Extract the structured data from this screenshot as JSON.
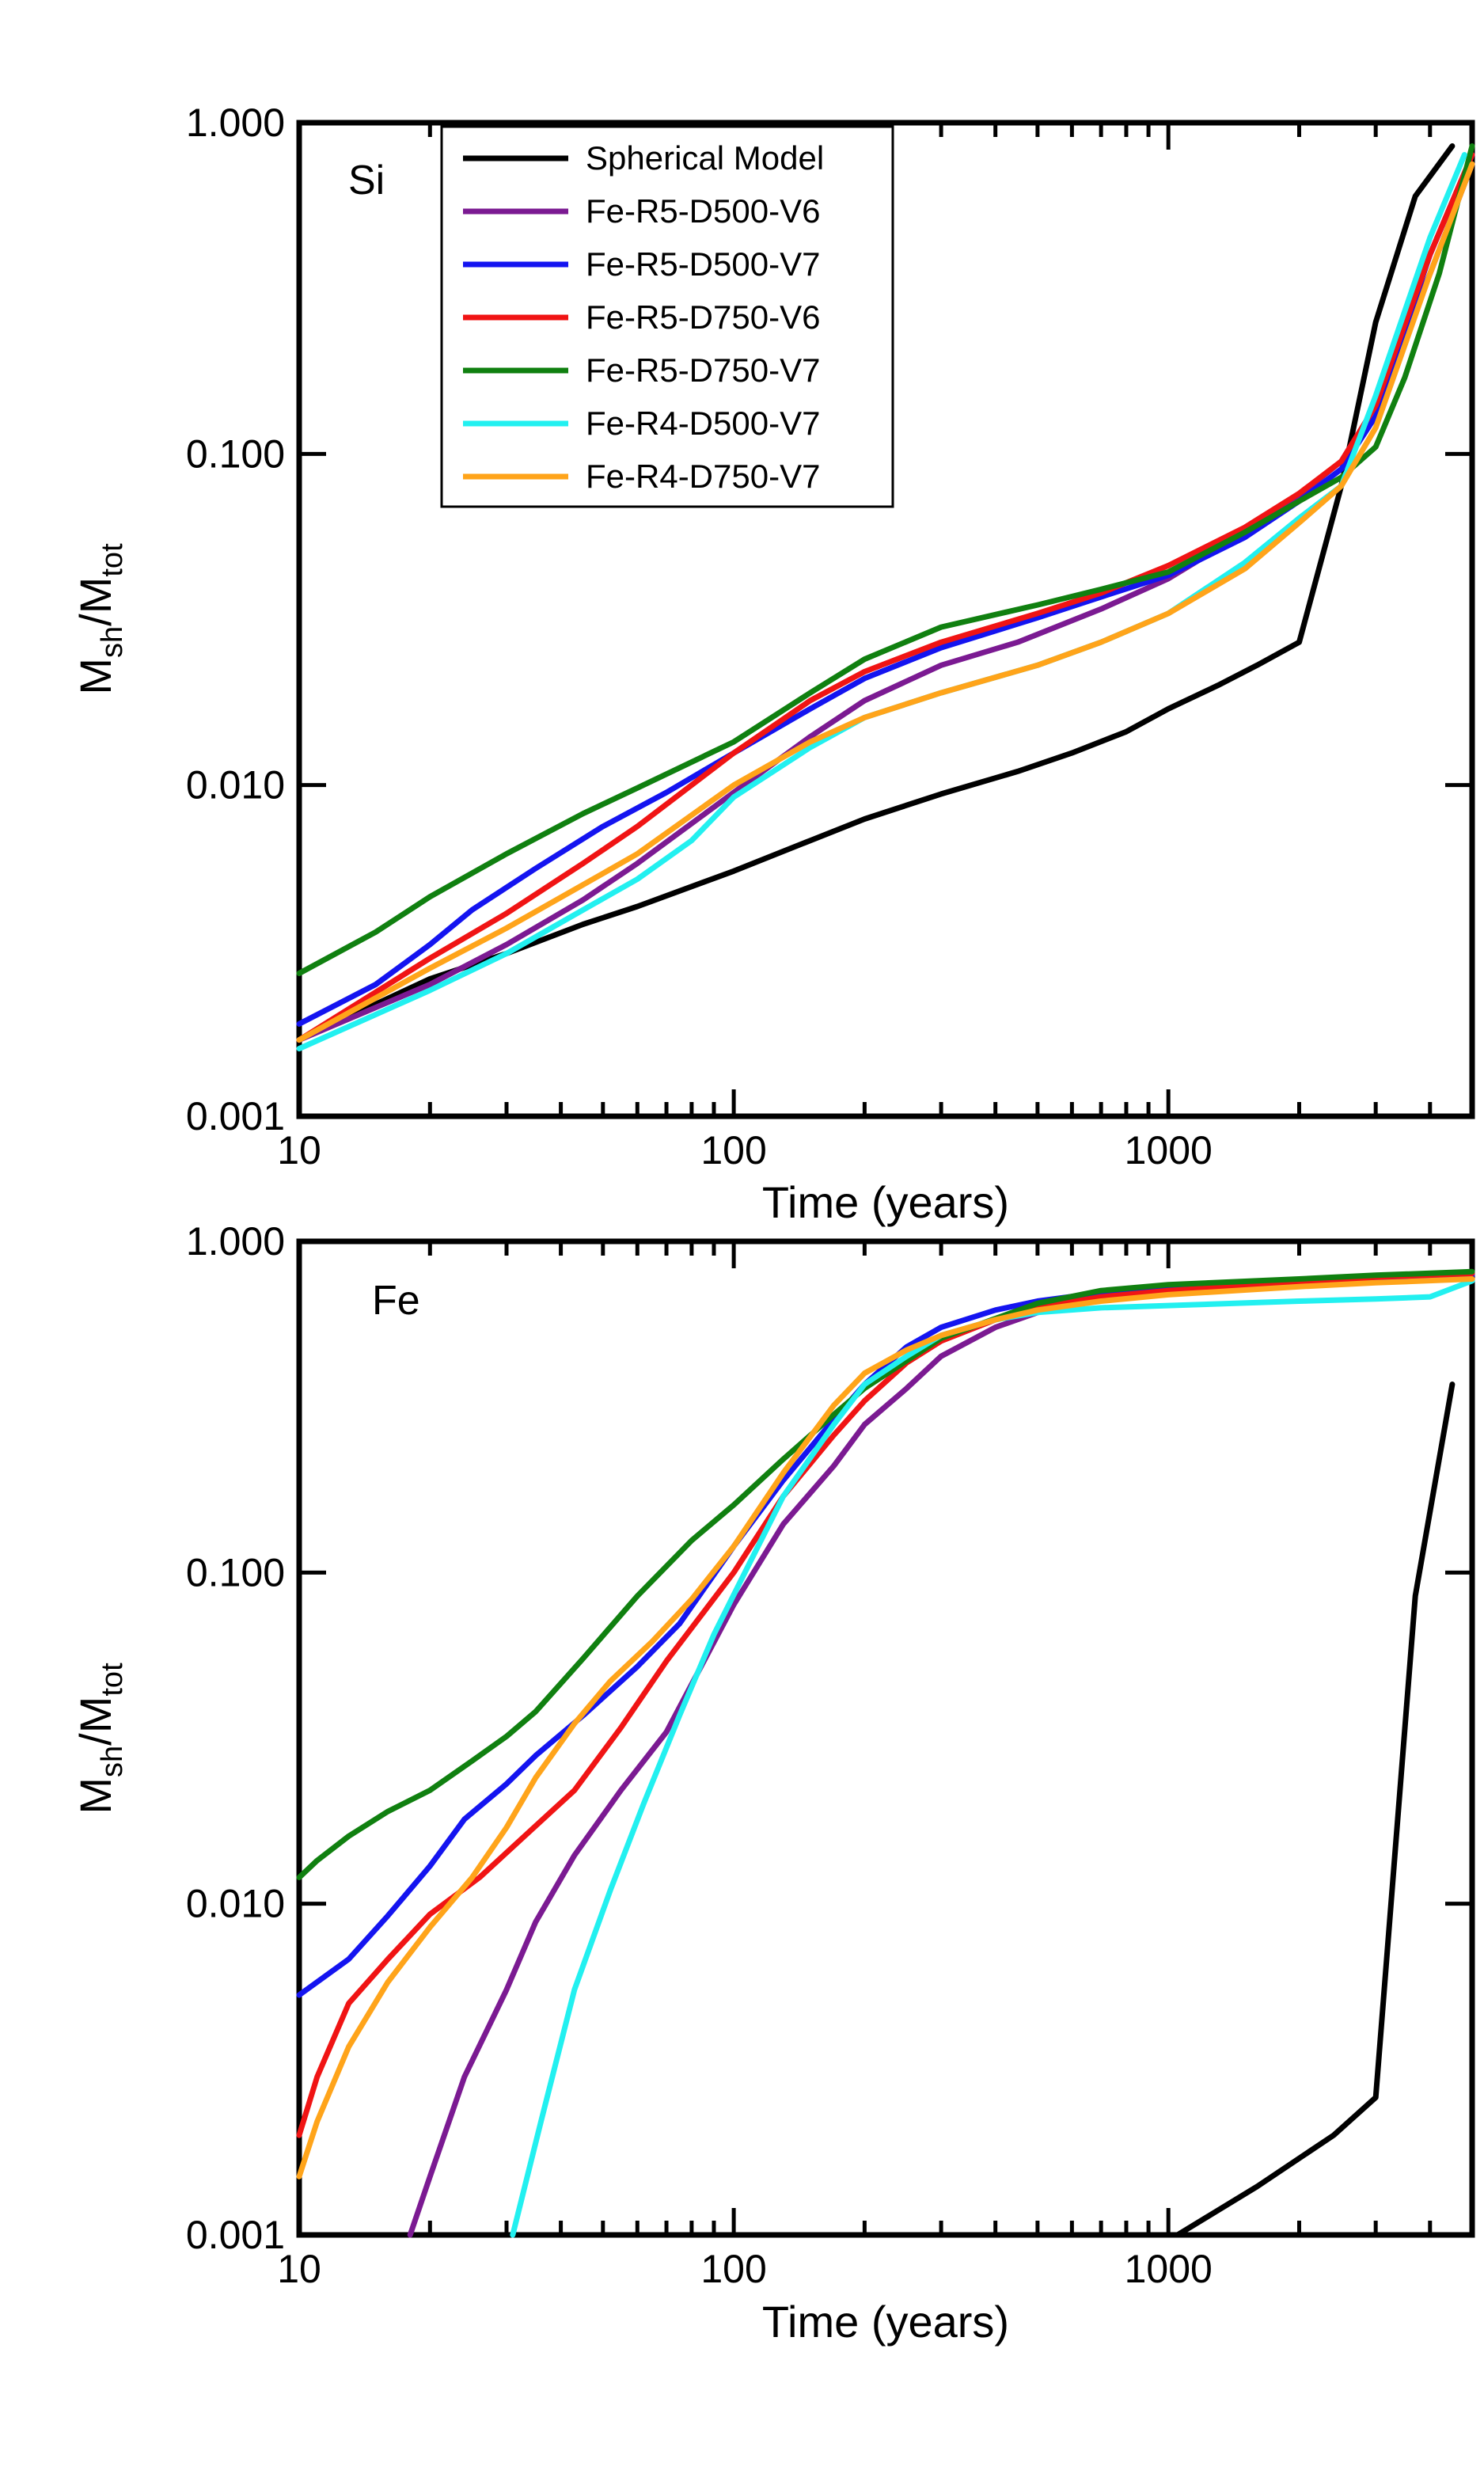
{
  "colors": {
    "Spherical Model": "#000000",
    "Fe-R5-D500-V6": "#7B1A92",
    "Fe-R5-D500-V7": "#1414F0",
    "Fe-R5-D750-V6": "#F01414",
    "Fe-R5-D750-V7": "#108010",
    "Fe-R4-D500-V7": "#22F0F0",
    "Fe-R4-D750-V7": "#FFA41A"
  },
  "chart_data": [
    {
      "id": "si",
      "type": "line",
      "panel_label": "Si",
      "xlabel": "Time (years)",
      "ylabel_main": "M",
      "ylabel_sub1": "sh",
      "ylabel_mid": "/M",
      "ylabel_sub2": "tot",
      "xscale": "log",
      "yscale": "log",
      "xlim": [
        10,
        5000
      ],
      "ylim": [
        0.001,
        1.0
      ],
      "xticks": [
        10,
        100,
        1000
      ],
      "xtick_labels": [
        "10",
        "100",
        "1000"
      ],
      "yticks": [
        0.001,
        0.01,
        0.1,
        1.0
      ],
      "ytick_labels": [
        "0.001",
        "0.010",
        "0.100",
        "1.000"
      ],
      "legend_position": "top-left",
      "series": [
        {
          "name": "Spherical Model",
          "x": [
            10,
            20,
            30,
            45,
            60,
            100,
            150,
            200,
            300,
            450,
            600,
            800,
            1000,
            1300,
            1600,
            2000,
            2500,
            3000,
            3700,
            4500
          ],
          "y": [
            0.0017,
            0.0026,
            0.0031,
            0.0038,
            0.0043,
            0.0055,
            0.0068,
            0.0079,
            0.0094,
            0.011,
            0.0125,
            0.0145,
            0.017,
            0.02,
            0.023,
            0.027,
            0.08,
            0.25,
            0.6,
            0.85
          ]
        },
        {
          "name": "Fe-R5-D500-V6",
          "x": [
            10,
            20,
            30,
            45,
            60,
            100,
            150,
            200,
            300,
            450,
            700,
            1000,
            1500,
            2000,
            2500,
            3000,
            4000,
            5000
          ],
          "y": [
            0.0017,
            0.0025,
            0.0033,
            0.0045,
            0.0058,
            0.0095,
            0.014,
            0.018,
            0.023,
            0.027,
            0.034,
            0.042,
            0.058,
            0.075,
            0.095,
            0.14,
            0.35,
            0.75
          ]
        },
        {
          "name": "Fe-R5-D500-V7",
          "x": [
            10,
            15,
            20,
            25,
            35,
            50,
            70,
            100,
            150,
            200,
            300,
            500,
            700,
            1000,
            1500,
            2000,
            2500,
            3000,
            4000,
            5000
          ],
          "y": [
            0.0019,
            0.0025,
            0.0033,
            0.0042,
            0.0056,
            0.0075,
            0.0095,
            0.0125,
            0.017,
            0.021,
            0.026,
            0.032,
            0.037,
            0.043,
            0.056,
            0.072,
            0.09,
            0.13,
            0.4,
            0.8
          ]
        },
        {
          "name": "Fe-R5-D750-V6",
          "x": [
            10,
            20,
            30,
            45,
            60,
            100,
            150,
            200,
            300,
            500,
            700,
            1000,
            1500,
            2000,
            2500,
            3000,
            4000,
            5000
          ],
          "y": [
            0.0017,
            0.003,
            0.0041,
            0.0058,
            0.0075,
            0.0125,
            0.018,
            0.022,
            0.027,
            0.033,
            0.038,
            0.046,
            0.06,
            0.076,
            0.095,
            0.14,
            0.4,
            0.8
          ]
        },
        {
          "name": "Fe-R5-D750-V7",
          "x": [
            10,
            15,
            20,
            30,
            45,
            60,
            100,
            150,
            200,
            300,
            500,
            700,
            1000,
            1500,
            2000,
            2500,
            3000,
            3500,
            4200,
            5000
          ],
          "y": [
            0.0027,
            0.0036,
            0.0046,
            0.0062,
            0.0082,
            0.0098,
            0.0135,
            0.019,
            0.024,
            0.03,
            0.035,
            0.039,
            0.044,
            0.058,
            0.072,
            0.085,
            0.105,
            0.17,
            0.35,
            0.85
          ]
        },
        {
          "name": "Fe-R4-D500-V7",
          "x": [
            10,
            20,
            30,
            45,
            60,
            80,
            100,
            150,
            200,
            300,
            500,
            700,
            1000,
            1500,
            2000,
            2500,
            3000,
            4000,
            4800
          ],
          "y": [
            0.0016,
            0.0024,
            0.0031,
            0.0042,
            0.0052,
            0.0068,
            0.0092,
            0.013,
            0.016,
            0.019,
            0.023,
            0.027,
            0.033,
            0.047,
            0.064,
            0.08,
            0.15,
            0.45,
            0.8
          ]
        },
        {
          "name": "Fe-R4-D750-V7",
          "x": [
            10,
            20,
            30,
            45,
            60,
            100,
            150,
            200,
            300,
            500,
            700,
            1000,
            1500,
            2000,
            2500,
            3000,
            4000,
            5000
          ],
          "y": [
            0.0017,
            0.0028,
            0.0037,
            0.005,
            0.0062,
            0.01,
            0.0135,
            0.016,
            0.019,
            0.023,
            0.027,
            0.033,
            0.045,
            0.062,
            0.08,
            0.12,
            0.35,
            0.75
          ]
        }
      ]
    },
    {
      "id": "fe",
      "type": "line",
      "panel_label": "Fe",
      "xlabel": "Time (years)",
      "ylabel_main": "M",
      "ylabel_sub1": "sh",
      "ylabel_mid": "/M",
      "ylabel_sub2": "tot",
      "xscale": "log",
      "yscale": "log",
      "xlim": [
        10,
        5000
      ],
      "ylim": [
        0.001,
        1.0
      ],
      "xticks": [
        10,
        100,
        1000
      ],
      "xtick_labels": [
        "10",
        "100",
        "1000"
      ],
      "yticks": [
        0.001,
        0.01,
        0.1,
        1.0
      ],
      "ytick_labels": [
        "0.001",
        "0.010",
        "0.100",
        "1.000"
      ],
      "series": [
        {
          "name": "Spherical Model",
          "x": [
            1050,
            1600,
            2400,
            3000,
            3700,
            4500
          ],
          "y": [
            0.001,
            0.0014,
            0.002,
            0.0026,
            0.085,
            0.37
          ]
        },
        {
          "name": "Fe-R5-D500-V6",
          "x": [
            18,
            20,
            24,
            30,
            35,
            43,
            55,
            70,
            100,
            130,
            170,
            200,
            250,
            300,
            400,
            500,
            700,
            1000,
            2000,
            3000,
            5000
          ],
          "y": [
            0.001,
            0.0015,
            0.003,
            0.0055,
            0.0088,
            0.014,
            0.022,
            0.033,
            0.08,
            0.14,
            0.21,
            0.28,
            0.36,
            0.45,
            0.55,
            0.61,
            0.67,
            0.71,
            0.75,
            0.78,
            0.79
          ]
        },
        {
          "name": "Fe-R5-D500-V7",
          "x": [
            10,
            13,
            16,
            20,
            24,
            30,
            35,
            45,
            60,
            75,
            100,
            130,
            170,
            200,
            250,
            300,
            400,
            500,
            700,
            1000,
            2000,
            3000,
            5000
          ],
          "y": [
            0.0053,
            0.0068,
            0.0092,
            0.013,
            0.018,
            0.023,
            0.028,
            0.037,
            0.052,
            0.07,
            0.12,
            0.19,
            0.29,
            0.37,
            0.48,
            0.55,
            0.62,
            0.66,
            0.7,
            0.72,
            0.75,
            0.77,
            0.79
          ]
        },
        {
          "name": "Fe-R5-D750-V6",
          "x": [
            10,
            11,
            13,
            16,
            20,
            26,
            33,
            43,
            55,
            70,
            100,
            130,
            170,
            200,
            250,
            300,
            400,
            500,
            700,
            1000,
            2000,
            3000,
            5000
          ],
          "y": [
            0.002,
            0.003,
            0.005,
            0.0068,
            0.0093,
            0.012,
            0.016,
            0.022,
            0.034,
            0.054,
            0.1,
            0.17,
            0.26,
            0.33,
            0.43,
            0.5,
            0.58,
            0.63,
            0.68,
            0.71,
            0.75,
            0.78,
            0.8
          ]
        },
        {
          "name": "Fe-R5-D750-V7",
          "x": [
            10,
            11,
            13,
            16,
            20,
            25,
            30,
            35,
            45,
            60,
            80,
            100,
            130,
            170,
            200,
            300,
            500,
            700,
            1000,
            2000,
            3000,
            5000
          ],
          "y": [
            0.012,
            0.0135,
            0.016,
            0.019,
            0.022,
            0.027,
            0.032,
            0.038,
            0.055,
            0.085,
            0.125,
            0.16,
            0.22,
            0.3,
            0.36,
            0.51,
            0.65,
            0.71,
            0.74,
            0.77,
            0.79,
            0.81
          ]
        },
        {
          "name": "Fe-R4-D500-V7",
          "x": [
            31,
            36,
            43,
            52,
            62,
            75,
            90,
            110,
            130,
            170,
            200,
            250,
            300,
            400,
            500,
            700,
            1000,
            2000,
            3000,
            4000,
            5000
          ],
          "y": [
            0.001,
            0.0022,
            0.0055,
            0.011,
            0.02,
            0.037,
            0.065,
            0.11,
            0.17,
            0.28,
            0.37,
            0.45,
            0.52,
            0.58,
            0.61,
            0.63,
            0.64,
            0.66,
            0.67,
            0.68,
            0.76
          ]
        },
        {
          "name": "Fe-R4-D750-V7",
          "x": [
            10,
            11,
            13,
            16,
            20,
            25,
            30,
            35,
            43,
            52,
            65,
            80,
            100,
            130,
            170,
            200,
            250,
            300,
            400,
            500,
            700,
            1000,
            2000,
            3000,
            5000
          ],
          "y": [
            0.0015,
            0.0022,
            0.0037,
            0.0058,
            0.0085,
            0.012,
            0.017,
            0.024,
            0.035,
            0.047,
            0.062,
            0.083,
            0.12,
            0.2,
            0.32,
            0.4,
            0.47,
            0.52,
            0.58,
            0.62,
            0.66,
            0.69,
            0.73,
            0.75,
            0.77
          ]
        }
      ]
    }
  ],
  "legend": {
    "entries": [
      "Spherical Model",
      "Fe-R5-D500-V6",
      "Fe-R5-D500-V7",
      "Fe-R5-D750-V6",
      "Fe-R5-D750-V7",
      "Fe-R4-D500-V7",
      "Fe-R4-D750-V7"
    ]
  }
}
